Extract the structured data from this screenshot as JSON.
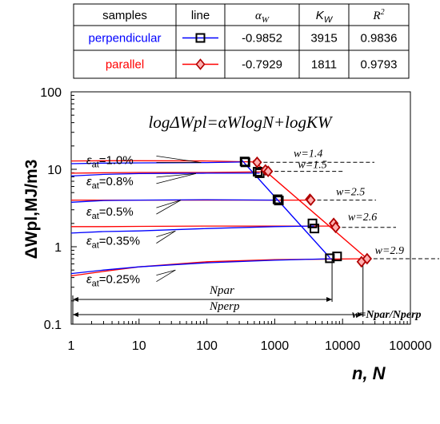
{
  "chart_data": {
    "type": "line",
    "title": "",
    "xlabel": "n, N",
    "ylabel": "ΔWpl,MJ/m3",
    "x_scale": "log",
    "y_scale": "log",
    "xlim": [
      1,
      100000
    ],
    "ylim": [
      0.1,
      100
    ],
    "x_ticks": [
      1,
      10,
      100,
      1000,
      10000,
      100000
    ],
    "x_tick_labels": [
      "1",
      "10",
      "100",
      "1000",
      "10000",
      "100000"
    ],
    "y_ticks": [
      0.1,
      1,
      10,
      100
    ],
    "y_tick_labels": [
      "0.1",
      "1",
      "10",
      "100"
    ],
    "grid": false,
    "equation": "logΔWpl=αWlogN+logKW",
    "legend_table": {
      "headers": [
        "samples",
        "line",
        "αW",
        "KW",
        "R2"
      ],
      "rows": [
        {
          "sample": "perpendicular",
          "alpha": "-0.9852",
          "K": "3915",
          "R2": "0.9836",
          "color": "#0000ff",
          "marker": "square"
        },
        {
          "sample": "parallel",
          "alpha": "-0.7929",
          "K": "1811",
          "R2": "0.9793",
          "color": "#ff0000",
          "marker": "diamond"
        }
      ]
    },
    "strain_labels": [
      {
        "symbol": "ε",
        "sub": "at",
        "value": "=1.0%",
        "y": 13.5
      },
      {
        "symbol": "ε",
        "sub": "at",
        "value": "=0.8%",
        "y": 7.2
      },
      {
        "symbol": "ε",
        "sub": "at",
        "value": "=0.5%",
        "y": 2.9
      },
      {
        "symbol": "ε",
        "sub": "at",
        "value": "=0.35%",
        "y": 1.22
      },
      {
        "symbol": "ε",
        "sub": "at",
        "value": "=0.25%",
        "y": 0.39
      }
    ],
    "w_labels": [
      {
        "text": "w=1.4",
        "x": 1900,
        "y": 14.5
      },
      {
        "text": "w=1.5",
        "x": 2200,
        "y": 10.4
      },
      {
        "text": "w=2.5",
        "x": 8000,
        "y": 4.6
      },
      {
        "text": "w=2.6",
        "x": 12000,
        "y": 2.2
      },
      {
        "text": "w=2.9",
        "x": 30000,
        "y": 0.81
      }
    ],
    "w_definition": "w=Npar/Nperp",
    "dimension_labels": {
      "N_par": "Npar",
      "N_perp": "Nperp"
    },
    "series": [
      {
        "name": "perpendicular",
        "color": "#0000ff",
        "marker": "square",
        "points": [
          [
            360,
            12.6
          ],
          [
            370,
            12.3
          ],
          [
            560,
            9.3
          ],
          [
            600,
            8.9
          ],
          [
            1100,
            4.1
          ],
          [
            1150,
            3.95
          ],
          [
            3600,
            2.0
          ],
          [
            3850,
            1.72
          ],
          [
            6500,
            0.71
          ],
          [
            8300,
            0.75
          ]
        ],
        "fit": [
          [
            330,
            13.0
          ],
          [
            6500,
            0.72
          ]
        ]
      },
      {
        "name": "parallel",
        "color": "#ff0000",
        "marker": "diamond",
        "points": [
          [
            550,
            12.3
          ],
          [
            730,
            9.8
          ],
          [
            800,
            9.4
          ],
          [
            3300,
            4.1
          ],
          [
            3400,
            4.0
          ],
          [
            7400,
            2.0
          ],
          [
            7900,
            1.78
          ],
          [
            19000,
            0.64
          ],
          [
            23000,
            0.7
          ]
        ],
        "fit": [
          [
            480,
            13.0
          ],
          [
            23000,
            0.7
          ]
        ]
      }
    ],
    "hysteresis_curves": [
      {
        "level": "1.0%",
        "blue": [
          [
            1,
            11.8
          ],
          [
            3,
            12.0
          ],
          [
            10,
            12.1
          ],
          [
            100,
            12.2
          ],
          [
            330,
            12.4
          ]
        ],
        "red": [
          [
            1,
            12.8
          ],
          [
            3,
            12.9
          ],
          [
            10,
            12.9
          ],
          [
            100,
            12.8
          ],
          [
            550,
            12.4
          ]
        ]
      },
      {
        "level": "0.8%",
        "blue": [
          [
            1,
            8.2
          ],
          [
            3,
            8.6
          ],
          [
            10,
            8.8
          ],
          [
            100,
            8.9
          ],
          [
            600,
            8.9
          ]
        ],
        "red": [
          [
            1,
            8.9
          ],
          [
            3,
            9.0
          ],
          [
            10,
            9.1
          ],
          [
            100,
            9.1
          ],
          [
            800,
            9.3
          ]
        ]
      },
      {
        "level": "0.5%",
        "blue": [
          [
            1,
            3.75
          ],
          [
            3,
            3.95
          ],
          [
            10,
            4.0
          ],
          [
            100,
            4.05
          ],
          [
            1100,
            4.0
          ]
        ],
        "red": [
          [
            1,
            4.0
          ],
          [
            3,
            4.0
          ],
          [
            10,
            4.0
          ],
          [
            100,
            4.0
          ],
          [
            3400,
            4.0
          ]
        ]
      },
      {
        "level": "0.35%",
        "blue": [
          [
            1,
            1.5
          ],
          [
            3,
            1.57
          ],
          [
            10,
            1.6
          ],
          [
            100,
            1.72
          ],
          [
            1000,
            1.82
          ],
          [
            3800,
            1.85
          ]
        ],
        "red": [
          [
            1,
            1.82
          ],
          [
            3,
            1.82
          ],
          [
            10,
            1.83
          ],
          [
            100,
            1.85
          ],
          [
            1000,
            1.85
          ],
          [
            7800,
            1.85
          ]
        ]
      },
      {
        "level": "0.25%",
        "blue": [
          [
            1,
            0.45
          ],
          [
            3,
            0.5
          ],
          [
            10,
            0.55
          ],
          [
            100,
            0.62
          ],
          [
            1000,
            0.67
          ],
          [
            7000,
            0.7
          ]
        ],
        "red": [
          [
            1,
            0.42
          ],
          [
            3,
            0.48
          ],
          [
            10,
            0.55
          ],
          [
            100,
            0.64
          ],
          [
            1000,
            0.68
          ],
          [
            23000,
            0.7
          ]
        ]
      }
    ]
  }
}
